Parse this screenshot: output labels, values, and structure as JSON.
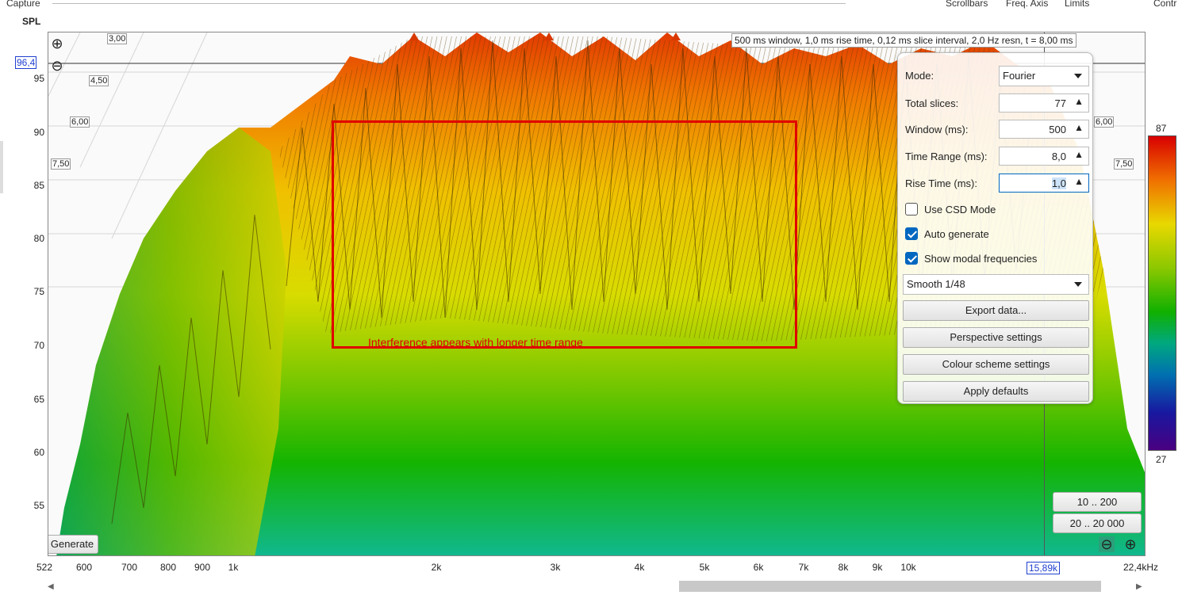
{
  "header": {
    "capture_label": "Capture",
    "menu": [
      "Scrollbars",
      "Freq. Axis",
      "Limits"
    ],
    "controls_label": "Contr"
  },
  "axis": {
    "y_title": "SPL",
    "y_ticks": [
      "95",
      "90",
      "85",
      "80",
      "75",
      "70",
      "65",
      "60",
      "55"
    ],
    "y_value_box": "96,4",
    "x_ticks": [
      "522",
      "600",
      "700",
      "800",
      "900",
      "1k",
      "2k",
      "3k",
      "4k",
      "5k",
      "6k",
      "7k",
      "8k",
      "9k",
      "10k",
      "22,4kHz"
    ],
    "x_cursor_value": "15,89k",
    "time_labels": [
      "3,00",
      "4,50",
      "6,00",
      "7,50"
    ],
    "time_labels_right": [
      "6,00",
      "7,50"
    ]
  },
  "info_text": "500 ms window, 1,0 ms rise time, 0,12 ms slice interval, 2,0 Hz resn, t = 8,00 ms",
  "annotation": {
    "text": "Interference appears with longer time range",
    "color": "#e00000"
  },
  "panel": {
    "mode_label": "Mode:",
    "mode_value": "Fourier",
    "total_slices_label": "Total slices:",
    "total_slices_value": "77",
    "window_label": "Window (ms):",
    "window_value": "500",
    "time_range_label": "Time Range (ms):",
    "time_range_value": "8,0",
    "rise_time_label": "Rise Time (ms):",
    "rise_time_value": "1,0",
    "use_csd_label": "Use CSD Mode",
    "use_csd_checked": false,
    "auto_generate_label": "Auto generate",
    "auto_generate_checked": true,
    "show_modal_label": "Show modal frequencies",
    "show_modal_checked": true,
    "smoothing_value": "Smooth 1/48",
    "export_label": "Export data...",
    "perspective_label": "Perspective settings",
    "colour_label": "Colour scheme settings",
    "defaults_label": "Apply defaults"
  },
  "buttons": {
    "generate": "Generate",
    "range_10_200": "10 .. 200",
    "range_20_20000": "20 .. 20 000"
  },
  "colorbar": {
    "max": "87",
    "min": "27",
    "colors": [
      "#d80000",
      "#f07000",
      "#e8d800",
      "#8cc800",
      "#10b000",
      "#00a880",
      "#0070b0",
      "#1818a0",
      "#4a0080"
    ]
  },
  "icons": {
    "zoom_in": "zoom-in-icon",
    "zoom_out": "zoom-out-icon",
    "scroll_left": "arrow-left-icon",
    "scroll_right": "arrow-right-icon"
  }
}
